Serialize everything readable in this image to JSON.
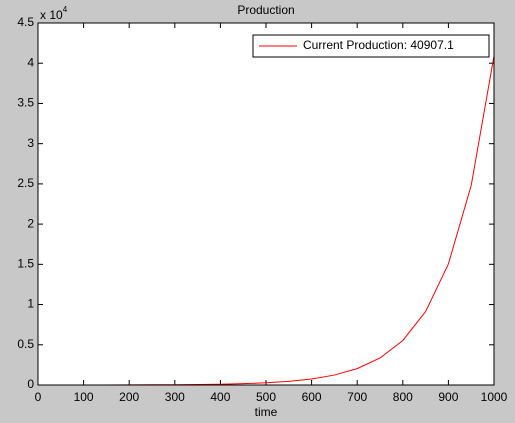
{
  "chart_data": {
    "type": "line",
    "title": "Production",
    "xlabel": "time",
    "y_multiplier": {
      "base": "x 10",
      "exponent": "4"
    },
    "x": [
      0,
      50,
      100,
      150,
      200,
      250,
      300,
      350,
      400,
      450,
      500,
      550,
      600,
      650,
      700,
      750,
      800,
      850,
      900,
      950,
      1000
    ],
    "series": [
      {
        "name": "Current Production: 40907.1",
        "color": "#ff0000",
        "values": [
          2,
          3,
          5,
          8,
          14,
          23,
          37,
          61,
          101,
          167,
          276,
          454,
          749,
          1235,
          2037,
          3358,
          5536,
          9128,
          15049,
          24811,
          40907.1
        ]
      }
    ],
    "xlim": [
      0,
      1000
    ],
    "xticks": [
      0,
      100,
      200,
      300,
      400,
      500,
      600,
      700,
      800,
      900,
      1000
    ],
    "ylim": [
      0,
      45000
    ],
    "yticks": [
      0,
      {
        "value": 5000,
        "label": "0.5"
      },
      {
        "value": 10000,
        "label": "1"
      },
      {
        "value": 15000,
        "label": "1.5"
      },
      {
        "value": 20000,
        "label": "2"
      },
      {
        "value": 25000,
        "label": "2.5"
      },
      {
        "value": 30000,
        "label": "3"
      },
      {
        "value": 35000,
        "label": "3.5"
      },
      {
        "value": 40000,
        "label": "4"
      },
      {
        "value": 45000,
        "label": "4.5"
      }
    ],
    "grid": false,
    "legend": "northeast"
  }
}
